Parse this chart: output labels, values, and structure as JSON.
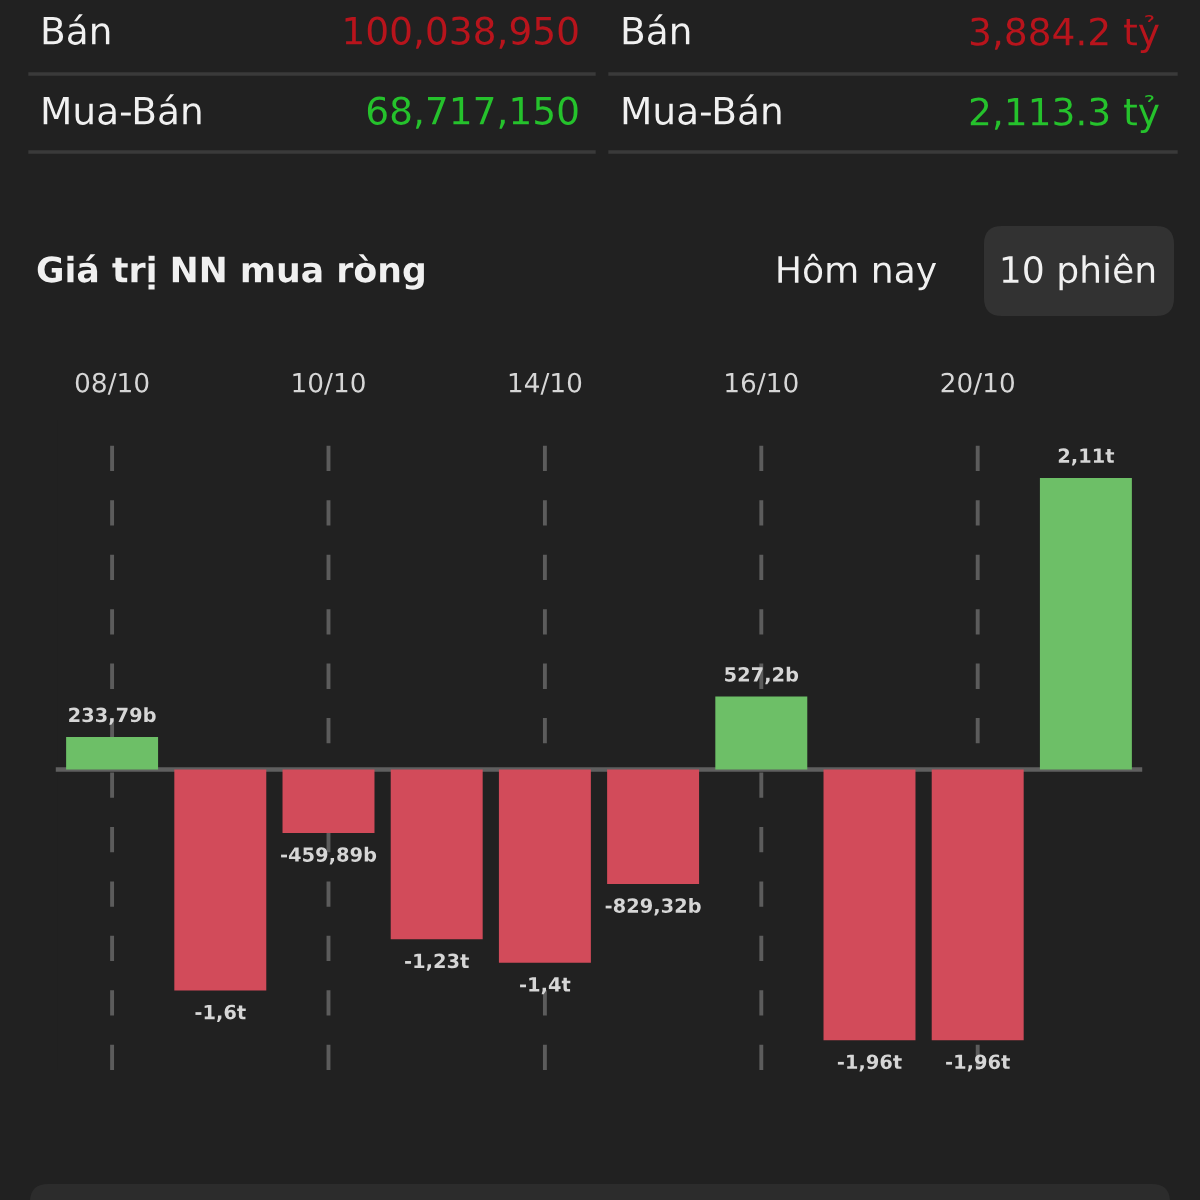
{
  "chart_data": {
    "type": "bar",
    "title": "Giá trị NN mua ròng",
    "categories": [
      "08/10",
      null,
      "10/10",
      null,
      "14/10",
      null,
      "16/10",
      null,
      "20/10",
      null
    ],
    "values": [
      233790000000,
      -1600000000000,
      -459890000000,
      -1230000000000,
      -1400000000000,
      -829320000000,
      527200000000,
      -1960000000000,
      -1960000000000,
      2110000000000
    ],
    "colors": [
      "#6dbf67",
      "#d24b5a",
      "#d24b5a",
      "#d24b5a",
      "#d24b5a",
      "#d24b5a",
      "#6dbf67",
      "#d24b5a",
      "#d24b5a",
      "#6dbf67"
    ],
    "value_labels": [
      "233,79b",
      "-1,6t",
      "-459,89b",
      "-1,23t",
      "-1,4t",
      "-829,32b",
      "527,2b",
      "-1,96t",
      "-1,96t",
      "2,11t"
    ],
    "grid": "x",
    "tick_labels": "x",
    "annotations": [
      "Bán",
      "100,038,950",
      "Mua-Bán",
      "68,717,150",
      "Bán",
      "3,884.2 tỷ",
      "Mua-Bán",
      "2,113.3 tỷ",
      "Hôm nay",
      "10 phiên"
    ]
  }
}
